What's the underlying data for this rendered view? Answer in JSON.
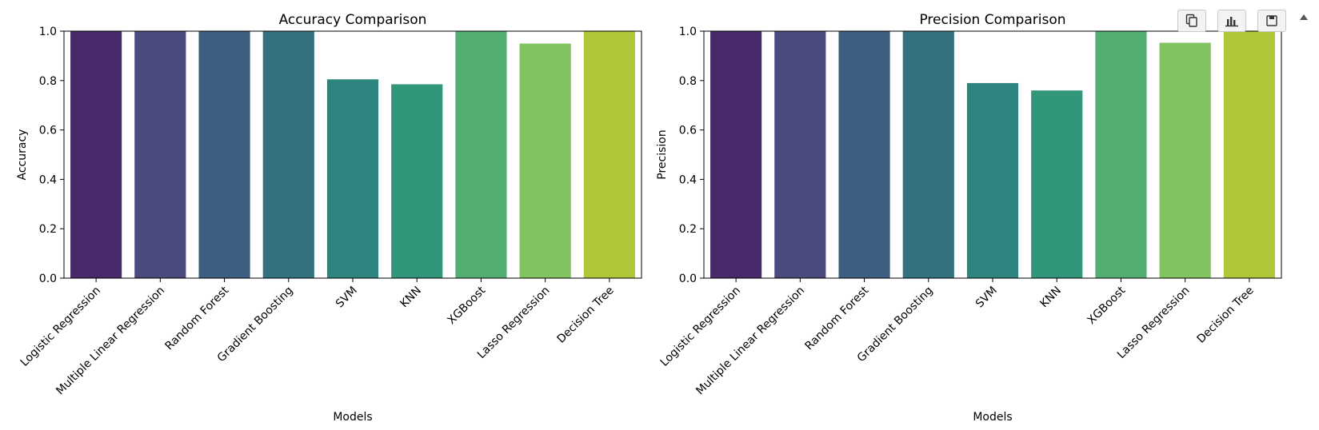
{
  "chart_data": [
    {
      "type": "bar",
      "title": "Accuracy Comparison",
      "xlabel": "Models",
      "ylabel": "Accuracy",
      "ylim": [
        0,
        1.0
      ],
      "yticks": [
        "0.0",
        "0.2",
        "0.4",
        "0.6",
        "0.8",
        "1.0"
      ],
      "grid": false,
      "categories": [
        "Logistic Regression",
        "Multiple Linear Regression",
        "Random Forest",
        "Gradient Boosting",
        "SVM",
        "KNN",
        "XGBoost",
        "Lasso Regression",
        "Decision Tree"
      ],
      "values": [
        1.0,
        1.0,
        1.0,
        1.0,
        0.805,
        0.785,
        1.0,
        0.95,
        1.0
      ],
      "colors": [
        "#482a6a",
        "#4a4a7c",
        "#3f5f82",
        "#347180",
        "#2e857f",
        "#32977a",
        "#52ae72",
        "#82c361",
        "#aec83a"
      ]
    },
    {
      "type": "bar",
      "title": "Precision Comparison",
      "xlabel": "Models",
      "ylabel": "Precision",
      "ylim": [
        0,
        1.0
      ],
      "yticks": [
        "0.0",
        "0.2",
        "0.4",
        "0.6",
        "0.8",
        "1.0"
      ],
      "grid": false,
      "categories": [
        "Logistic Regression",
        "Multiple Linear Regression",
        "Random Forest",
        "Gradient Boosting",
        "SVM",
        "KNN",
        "XGBoost",
        "Lasso Regression",
        "Decision Tree"
      ],
      "values": [
        1.0,
        1.0,
        1.0,
        1.0,
        0.79,
        0.76,
        1.0,
        0.953,
        1.0
      ],
      "colors": [
        "#482a6a",
        "#4a4a7c",
        "#3f5f82",
        "#347180",
        "#2e857f",
        "#32977a",
        "#52ae72",
        "#82c361",
        "#aec83a"
      ]
    }
  ],
  "toolbar": {
    "icons": [
      "copy-icon",
      "chart-icon",
      "save-icon",
      "chevron-up-icon"
    ]
  }
}
